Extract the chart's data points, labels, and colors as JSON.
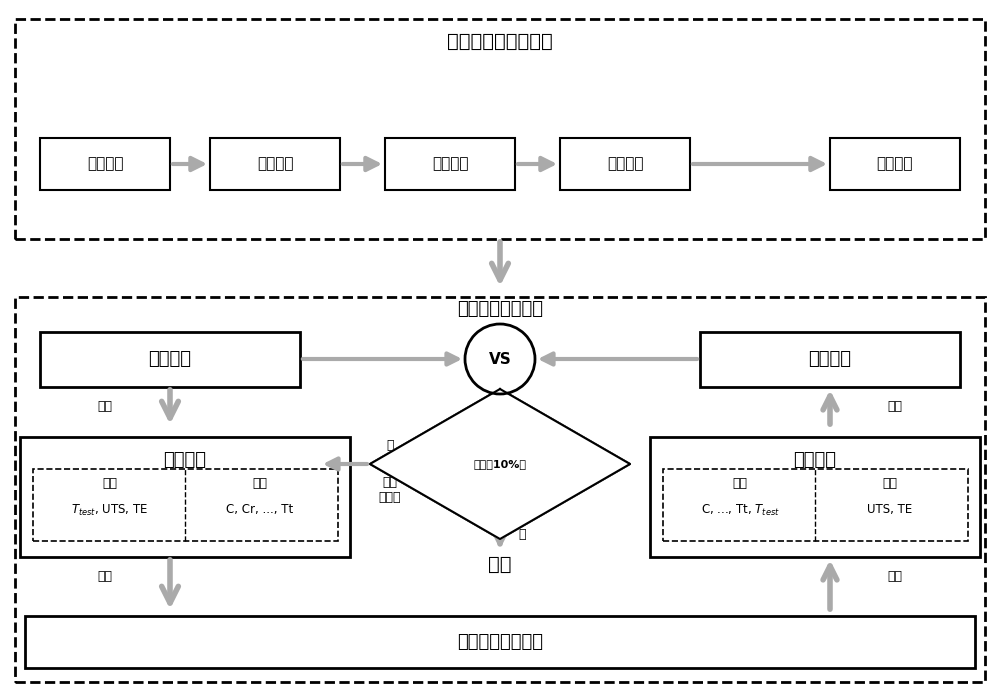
{
  "bg_color": "#ffffff",
  "border_color": "#000000",
  "box_color": "#ffffff",
  "arrow_color": "#aaaaaa",
  "text_color": "#000000",
  "dashed_color": "#555555",
  "top_title": "构建正向和逆向模型",
  "top_boxes": [
    "原始数据",
    "数据处理",
    "模型训练",
    "模型构建",
    "模型测试"
  ],
  "bottom_title": "构建智能筛选模型",
  "left_box": "目标性能",
  "right_box": "预测性能",
  "vs_label": "VS",
  "inverse_title": "逆向模型",
  "inverse_feat_header": "特征",
  "inverse_label_header": "标签",
  "inverse_feat_content": "Tₑₑₑₑ, UTS, TE",
  "inverse_feat_content2": "T_{test}, UTS, TE",
  "inverse_label_content": "C, Cr, ..., Tt",
  "forward_title": "正向模型",
  "forward_feat_header": "特征",
  "forward_label_header": "标签",
  "forward_feat_content": "C, ..., Tt, T_{test}",
  "forward_label_content": "UTS, TE",
  "diamond_text": "偏差＜10%？",
  "no_label": "否",
  "adjust_label": "调整\n输入值",
  "yes_label": "是",
  "success_label": "成功",
  "bottom_box": "成分和热处理参数",
  "input_label": "输入",
  "output_label": "输出"
}
